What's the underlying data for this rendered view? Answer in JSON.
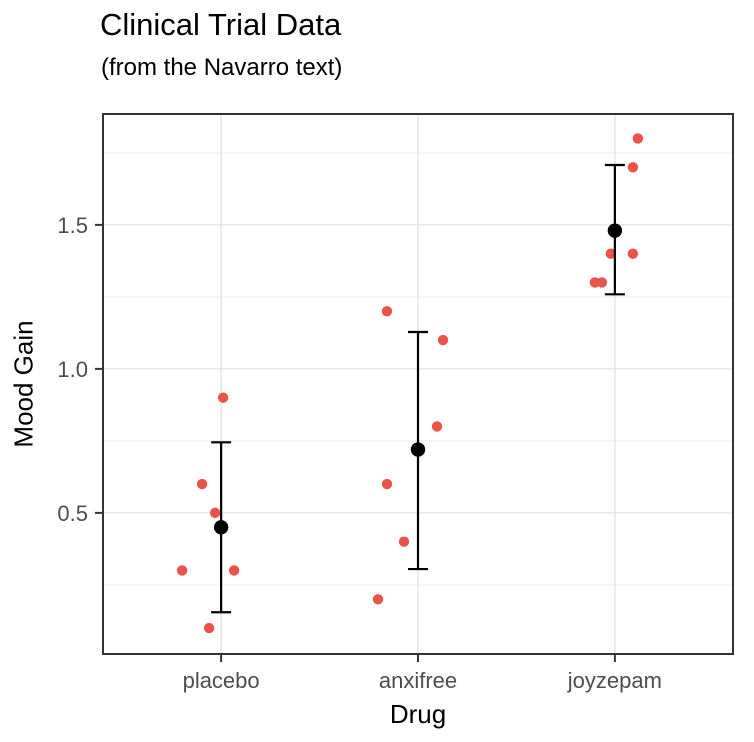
{
  "chart_data": {
    "type": "scatter",
    "title": "Clinical Trial Data",
    "subtitle": "(from the Navarro text)",
    "xlabel": "Drug",
    "ylabel": "Mood Gain",
    "categories": [
      "placebo",
      "anxifree",
      "joyzepam"
    ],
    "ylim": [
      0.01,
      1.885
    ],
    "yticks": [
      0.5,
      1.0,
      1.5
    ],
    "ytick_labels": [
      "0.5",
      "1.0",
      "1.5"
    ],
    "yticks_minor": [
      0.25,
      0.75,
      1.25,
      1.75
    ],
    "grid": "horizontal major+minor gridlines, one vertical gridline per category",
    "legend_position": "none",
    "series": [
      {
        "name": "placebo",
        "points": [
          {
            "value": 0.9,
            "dx": 2
          },
          {
            "value": 0.6,
            "dx": -19
          },
          {
            "value": 0.5,
            "dx": -6
          },
          {
            "value": 0.3,
            "dx": -39
          },
          {
            "value": 0.3,
            "dx": 13
          },
          {
            "value": 0.1,
            "dx": -12
          }
        ],
        "mean": 0.45,
        "ci_low": 0.155,
        "ci_high": 0.745
      },
      {
        "name": "anxifree",
        "points": [
          {
            "value": 1.2,
            "dx": -31
          },
          {
            "value": 1.1,
            "dx": 25
          },
          {
            "value": 0.8,
            "dx": 19
          },
          {
            "value": 0.6,
            "dx": -31
          },
          {
            "value": 0.4,
            "dx": -14
          },
          {
            "value": 0.2,
            "dx": -40
          }
        ],
        "mean": 0.72,
        "ci_low": 0.305,
        "ci_high": 1.128
      },
      {
        "name": "joyzepam",
        "points": [
          {
            "value": 1.8,
            "dx": 23
          },
          {
            "value": 1.7,
            "dx": 18
          },
          {
            "value": 1.4,
            "dx": -4
          },
          {
            "value": 1.4,
            "dx": 18
          },
          {
            "value": 1.3,
            "dx": -20
          },
          {
            "value": 1.3,
            "dx": -13
          }
        ],
        "mean": 1.48,
        "ci_low": 1.259,
        "ci_high": 1.708
      }
    ],
    "colors": {
      "point": "#e8534a",
      "summary": "#000000",
      "grid_major": "#e6e6e6",
      "grid_minor": "#ededed",
      "panel_border": "#333333",
      "tick": "#333333",
      "tick_label": "#4d4d4d",
      "axis_title": "#000000",
      "background": "#ffffff"
    }
  }
}
